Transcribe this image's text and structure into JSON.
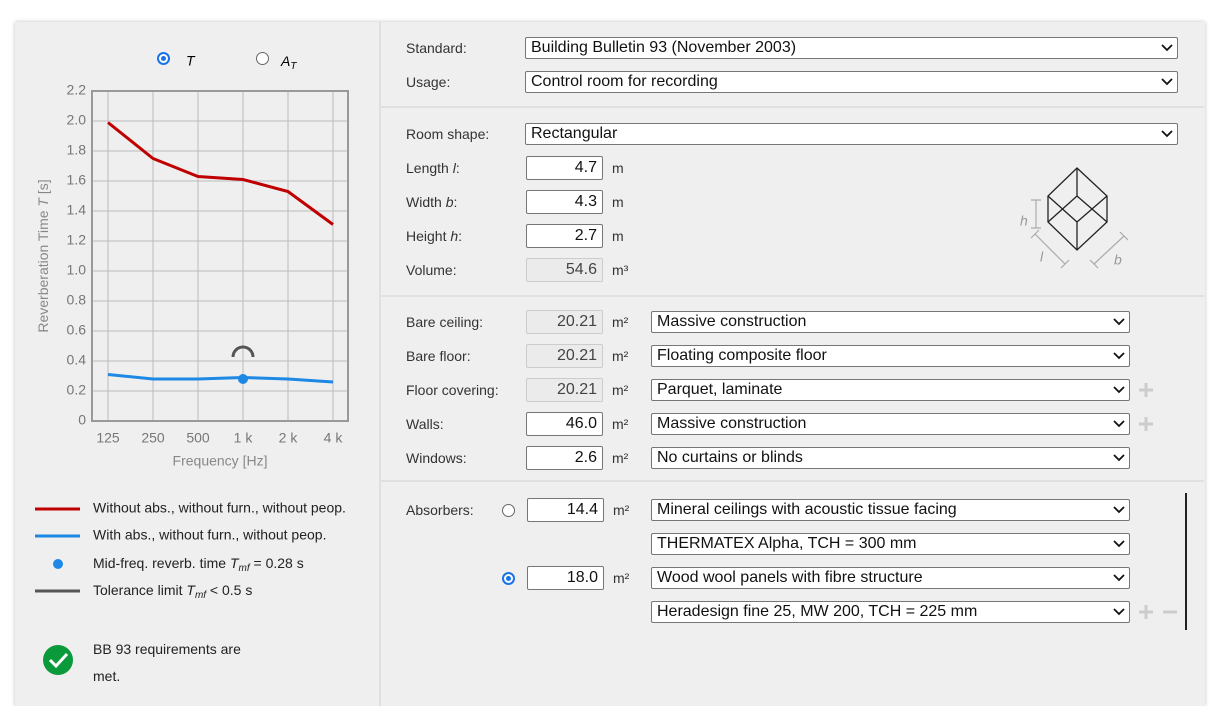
{
  "radios": {
    "t": "T",
    "at_main": "A",
    "at_sub": "T"
  },
  "chart_data": {
    "type": "line",
    "x_label": "Frequency [Hz]",
    "y_label": {
      "pre": "Reverberation Time ",
      "var": "T",
      "post": " [s]"
    },
    "categories": [
      "125",
      "250",
      "500",
      "1 k",
      "2 k",
      "4 k"
    ],
    "series": [
      {
        "name": "Without abs., without furn., without peop.",
        "color": "#c00000",
        "values": [
          1.99,
          1.75,
          1.63,
          1.61,
          1.53,
          1.31
        ]
      },
      {
        "name": "With abs., without furn., without peop.",
        "color": "#1e88e5",
        "values": [
          0.31,
          0.28,
          0.28,
          0.29,
          0.28,
          0.26
        ]
      }
    ],
    "ylim": [
      0,
      2.2
    ],
    "yticks": [
      0,
      0.2,
      0.4,
      0.6,
      0.8,
      {
        "value": 1,
        "label": "1.0"
      },
      1.2,
      1.4,
      1.6,
      1.8,
      {
        "value": 2,
        "label": "2.0"
      },
      2.2
    ],
    "grid": true,
    "mid_freq": {
      "category": "1 k",
      "value": 0.28,
      "color": "#1e88e5",
      "legend": {
        "pre": "Mid-freq. reverb. time ",
        "var": "T",
        "sub": "mf",
        "post": " = 0.28 s"
      }
    },
    "tolerance": {
      "category": "1 k",
      "value": 0.5,
      "color": "#555555",
      "legend": {
        "pre": "Tolerance limit ",
        "var": "T",
        "sub": "mf",
        "post": " < 0.5 s"
      }
    }
  },
  "status": "BB 93 requirements are met.",
  "form": {
    "standard": {
      "label": "Standard:",
      "value": "Building Bulletin 93 (November 2003)"
    },
    "usage": {
      "label": "Usage:",
      "value": "Control room for recording"
    },
    "room_shape": {
      "label": "Room shape:",
      "value": "Rectangular"
    },
    "dimensions": [
      {
        "pre": "Length ",
        "var": "l",
        "post": ":",
        "value": "4.7",
        "unit": "m"
      },
      {
        "pre": "Width ",
        "var": "b",
        "post": ":",
        "value": "4.3",
        "unit": "m"
      },
      {
        "pre": "Height ",
        "var": "h",
        "post": ":",
        "value": "2.7",
        "unit": "m"
      }
    ],
    "volume": {
      "label": "Volume:",
      "value": "54.6",
      "unit": "m³"
    },
    "sketch": {
      "h": "h",
      "l": "l",
      "b": "b"
    },
    "surfaces": [
      {
        "label": "Bare ceiling:",
        "area": "20.21",
        "unit": "m²",
        "material": "Massive construction",
        "readonly": true
      },
      {
        "label": "Bare floor:",
        "area": "20.21",
        "unit": "m²",
        "material": "Floating composite floor",
        "readonly": true
      },
      {
        "label": "Floor covering:",
        "area": "20.21",
        "unit": "m²",
        "material": "Parquet, laminate",
        "readonly": true
      },
      {
        "label": "Walls:",
        "area": "46.0",
        "unit": "m²",
        "material": "Massive construction",
        "readonly": false
      },
      {
        "label": "Windows:",
        "area": "2.6",
        "unit": "m²",
        "material": "No curtains or blinds",
        "readonly": false
      }
    ],
    "absorbers": {
      "label": "Absorbers:",
      "items": [
        {
          "area": "14.4",
          "unit": "m²",
          "type": "Mineral ceilings with acoustic tissue facing",
          "product": "THERMATEX Alpha, TCH = 300 mm",
          "selected": false
        },
        {
          "area": "18.0",
          "unit": "m²",
          "type": "Wood wool panels with fibre structure",
          "product": "Heradesign fine 25, MW 200, TCH = 225 mm",
          "selected": true
        }
      ]
    }
  }
}
